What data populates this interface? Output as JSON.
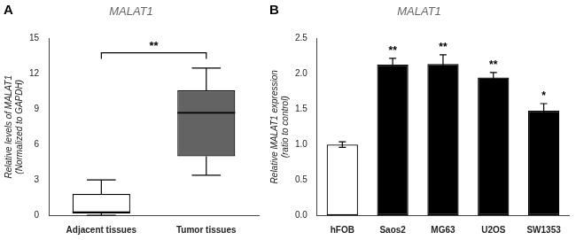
{
  "chart_data": [
    {
      "type": "box",
      "panel": "A",
      "title": "MALAT1",
      "ylabel": "Relative levels of MALAT1\n(Normalized to GAPDH)",
      "categories": [
        "Adjacent tissues",
        "Tumor tissues"
      ],
      "boxes": [
        {
          "whislo": 0.0,
          "q1": 0.15,
          "med": 0.25,
          "q3": 1.8,
          "whishi": 3.0
        },
        {
          "whislo": 3.4,
          "q1": 5.0,
          "med": 8.7,
          "q3": 10.6,
          "whishi": 12.5
        }
      ],
      "colors": [
        "white",
        "#636363"
      ],
      "ylim": [
        0,
        15
      ],
      "yticks": [
        0,
        3,
        6,
        9,
        12,
        15
      ],
      "grid": false,
      "annotations": [
        {
          "text": "**",
          "from": "Adjacent tissues",
          "to": "Tumor tissues",
          "y": 13.8
        }
      ]
    },
    {
      "type": "bar",
      "panel": "B",
      "title": "MALAT1",
      "ylabel": "Relative MALAT1 expression\n(ratio to control)",
      "categories": [
        "hFOB",
        "Saos2",
        "MG63",
        "U2OS",
        "SW1353"
      ],
      "values": [
        1.0,
        2.13,
        2.14,
        1.95,
        1.48
      ],
      "errors": [
        0.04,
        0.09,
        0.13,
        0.07,
        0.1
      ],
      "colors": [
        "white",
        "black",
        "black",
        "black",
        "black"
      ],
      "ylim": [
        0,
        2.5
      ],
      "yticks": [
        {
          "value": 0,
          "label": "0.0"
        },
        0.5,
        {
          "value": 1,
          "label": "1.0"
        },
        1.5,
        {
          "value": 2,
          "label": "2.0"
        },
        2.5
      ],
      "grid": false,
      "annotations": [
        {
          "text": "**",
          "category": "Saos2"
        },
        {
          "text": "**",
          "category": "MG63"
        },
        {
          "text": "**",
          "category": "U2OS"
        },
        {
          "text": "*",
          "category": "SW1353"
        }
      ]
    }
  ]
}
